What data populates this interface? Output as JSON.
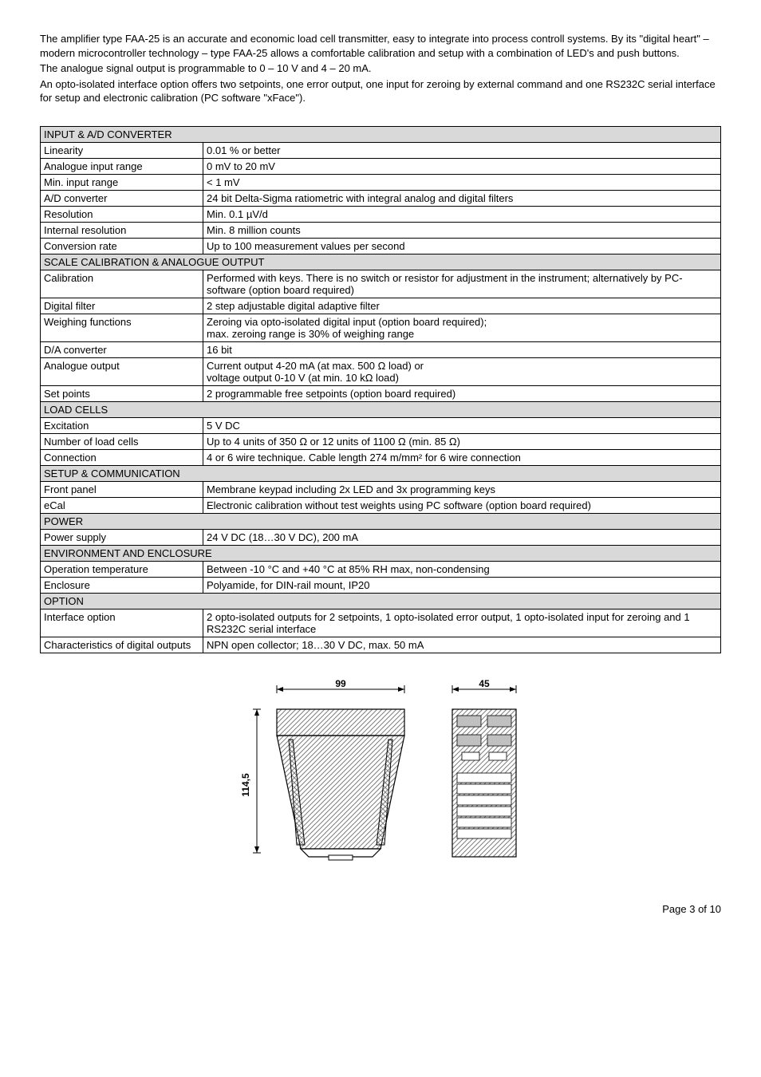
{
  "intro": {
    "p1": "The amplifier type FAA-25 is an accurate and economic load cell transmitter, easy to integrate into process controll systems. By its \"digital heart\" – modern microcontroller technology – type FAA-25 allows a comfortable calibration and setup with a combination of LED's and push buttons.",
    "p2": "The analogue signal output is programmable to 0 – 10 V and 4 – 20 mA.",
    "p3": "An opto-isolated interface option offers two setpoints, one error output, one input for zeroing by external command and one RS232C serial interface for setup and electronic calibration (PC software \"xFace\")."
  },
  "sections": [
    {
      "title": "INPUT  &  A/D CONVERTER",
      "rows": [
        {
          "label": "Linearity",
          "value": "0.01 % or better"
        },
        {
          "label": "Analogue input range",
          "value": "0 mV to 20 mV"
        },
        {
          "label": "Min. input range",
          "value": "< 1 mV"
        },
        {
          "label": "A/D converter",
          "value": "24 bit Delta-Sigma ratiometric with integral analog and digital filters"
        },
        {
          "label": "Resolution",
          "value": "Min. 0.1 µV/d"
        },
        {
          "label": "Internal resolution",
          "value": "Min. 8 million counts"
        },
        {
          "label": "Conversion rate",
          "value": "Up to 100 measurement values per second"
        }
      ]
    },
    {
      "title": "SCALE CALIBRATION & ANALOGUE OUTPUT",
      "rows": [
        {
          "label": "Calibration",
          "value": "Performed with keys. There is no switch or resistor for adjustment in the instrument; alternatively by PC-software (option board required)"
        },
        {
          "label": "Digital filter",
          "value": "2 step adjustable digital adaptive filter"
        },
        {
          "label": "Weighing functions",
          "value": "Zeroing via opto-isolated digital input (option board required);\nmax. zeroing range is 30% of weighing range"
        },
        {
          "label": "D/A converter",
          "value": "16 bit"
        },
        {
          "label": "Analogue output",
          "value": "Current output 4-20 mA (at max. 500 Ω load) or\nvoltage output 0-10 V (at min. 10 kΩ load)"
        },
        {
          "label": "Set points",
          "value": "2 programmable free setpoints (option board required)"
        }
      ]
    },
    {
      "title": "LOAD CELLS",
      "rows": [
        {
          "label": "Excitation",
          "value": "5 V DC"
        },
        {
          "label": "Number of load cells",
          "value": "Up to 4 units of 350 Ω or 12 units of 1100 Ω  (min. 85 Ω)"
        },
        {
          "label": "Connection",
          "value": "4 or 6 wire technique. Cable length 274 m/mm² for 6 wire connection"
        }
      ]
    },
    {
      "title": "SETUP & COMMUNICATION",
      "rows": [
        {
          "label": "Front panel",
          "value": "Membrane keypad including  2x LED and 3x programming keys"
        },
        {
          "label": "eCal",
          "value": "Electronic calibration without test weights using PC software (option board required)"
        }
      ]
    },
    {
      "title": "POWER",
      "rows": [
        {
          "label": "Power supply",
          "value": "24 V DC (18…30 V DC), 200 mA"
        }
      ]
    },
    {
      "title": "ENVIRONMENT AND ENCLOSURE",
      "rows": [
        {
          "label": "Operation temperature",
          "value": "Between -10 °C and +40 °C at 85% RH max, non-condensing"
        },
        {
          "label": "Enclosure",
          "value": "Polyamide, for DIN-rail mount, IP20"
        }
      ]
    },
    {
      "title": "OPTION",
      "rows": [
        {
          "label": "Interface option",
          "value": "2 opto-isolated outputs for 2 setpoints, 1 opto-isolated error output, 1 opto-isolated input for zeroing and 1 RS232C serial interface"
        },
        {
          "label": "Characteristics of digital outputs",
          "value": "NPN open collector; 18…30 V DC, max. 50 mA"
        }
      ]
    }
  ],
  "diagram": {
    "dim_width": "99",
    "dim_height": "114,5",
    "dim_front": "45",
    "colors": {
      "fill": "#ffffff",
      "hatch": "#808080",
      "stroke": "#000000"
    }
  },
  "footer": "Page 3 of 10"
}
